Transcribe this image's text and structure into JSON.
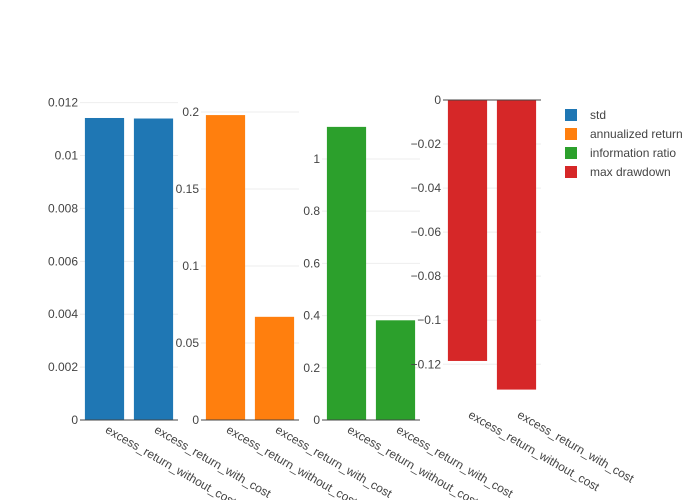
{
  "chart_data": {
    "type": "bar",
    "categories": [
      "excess_return_without_cost",
      "excess_return_with_cost"
    ],
    "series": [
      {
        "name": "std",
        "color": "#1f77b4",
        "values": [
          0.01142,
          0.0114
        ],
        "ylim": [
          0,
          0.0121
        ],
        "ticks": [
          0,
          0.002,
          0.004,
          0.006,
          0.008,
          0.01,
          0.012
        ],
        "tick_labels": [
          "0",
          "0.002",
          "0.004",
          "0.006",
          "0.008",
          "0.01",
          "0.012"
        ]
      },
      {
        "name": "annualized return",
        "color": "#ff7f0e",
        "values": [
          0.198,
          0.067
        ],
        "ylim": [
          0,
          0.2
        ],
        "ticks": [
          0,
          0.05,
          0.1,
          0.15,
          0.2
        ],
        "tick_labels": [
          "0",
          "0.05",
          "0.1",
          "0.15",
          "0.2"
        ]
      },
      {
        "name": "information ratio",
        "color": "#2ca02c",
        "values": [
          1.123,
          0.382
        ],
        "ylim": [
          0,
          1.18
        ],
        "ticks": [
          0,
          0.2,
          0.4,
          0.6,
          0.8,
          1
        ],
        "tick_labels": [
          "0",
          "0.2",
          "0.4",
          "0.6",
          "0.8",
          "1"
        ]
      },
      {
        "name": "max drawdown",
        "color": "#d62728",
        "values": [
          -0.1185,
          -0.1315
        ],
        "ylim": [
          -0.1385,
          0
        ],
        "ticks": [
          0,
          -0.02,
          -0.04,
          -0.06,
          -0.08,
          -0.1,
          -0.12
        ],
        "tick_labels": [
          "0",
          "−0.02",
          "−0.04",
          "−0.06",
          "−0.08",
          "−0.1",
          "−0.12"
        ]
      }
    ],
    "legend_position": "top-right",
    "grid": true
  }
}
